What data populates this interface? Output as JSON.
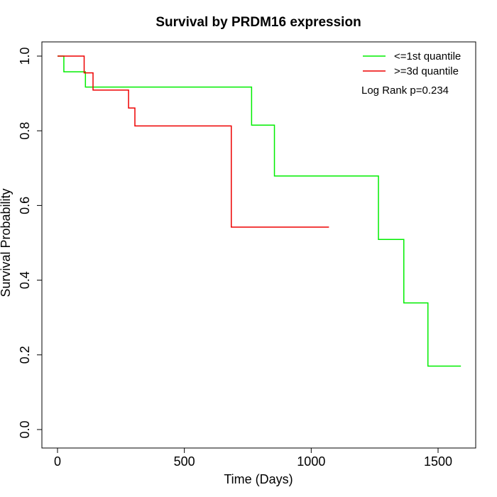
{
  "chart_data": {
    "type": "line",
    "step": true,
    "title": "Survival by PRDM16 expression",
    "xlabel": "Time (Days)",
    "ylabel": "Survival Probability",
    "xlim": [
      0,
      1650
    ],
    "ylim": [
      0,
      1.0
    ],
    "xticks": [
      0,
      500,
      1000,
      1500
    ],
    "yticks": [
      0.0,
      0.2,
      0.4,
      0.6,
      0.8,
      1.0
    ],
    "xtick_labels": [
      "0",
      "500",
      "1000",
      "1500"
    ],
    "ytick_labels": [
      "0.0",
      "0.2",
      "0.4",
      "0.6",
      "0.8",
      "1.0"
    ],
    "grid": false,
    "legend_position": "top-right",
    "annotation": "Log Rank p=0.234",
    "series": [
      {
        "name": "<=1st quantile",
        "color": "#00ee00",
        "x": [
          0,
          25,
          110,
          765,
          855,
          1265,
          1365,
          1460,
          1590
        ],
        "y": [
          1.0,
          0.958,
          0.917,
          0.815,
          0.679,
          0.509,
          0.339,
          0.17,
          0.17
        ]
      },
      {
        "name": ">=3d quantile",
        "color": "#ee0000",
        "x": [
          0,
          105,
          140,
          280,
          305,
          685,
          1070
        ],
        "y": [
          1.0,
          0.955,
          0.909,
          0.861,
          0.813,
          0.542,
          0.542
        ]
      }
    ]
  }
}
